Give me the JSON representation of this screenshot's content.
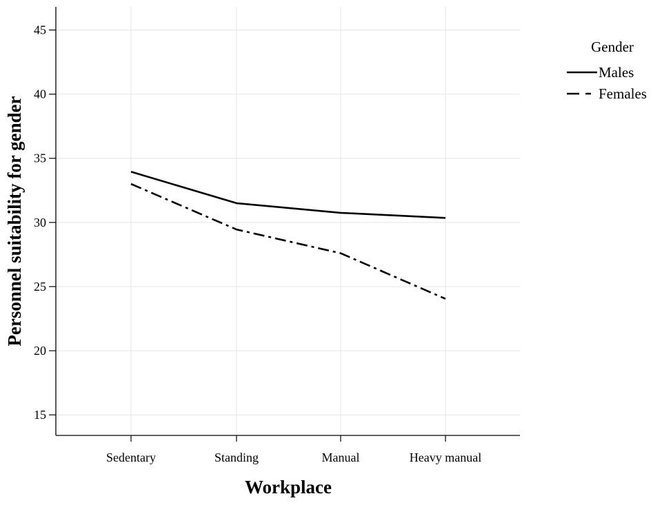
{
  "chart_data": {
    "type": "line",
    "categories": [
      "Sedentary",
      "Standing",
      "Manual",
      "Heavy manual"
    ],
    "series": [
      {
        "name": "Males",
        "values": [
          33.95,
          31.5,
          30.75,
          30.35
        ],
        "style": "solid"
      },
      {
        "name": "Females",
        "values": [
          33.0,
          29.45,
          27.6,
          24.05
        ],
        "style": "dash-dot"
      }
    ],
    "xlabel": "Workplace",
    "ylabel": "Personnel suitability for gender",
    "ylim": [
      13.4,
      46.8
    ],
    "yticks": [
      15,
      20,
      25,
      30,
      35,
      40,
      45
    ],
    "grid": true,
    "legend": {
      "title": "Gender",
      "position": "top-right-outside"
    },
    "colors": {
      "line": "#000000",
      "grid": "#e6e6e6",
      "axis": "#000000"
    }
  }
}
